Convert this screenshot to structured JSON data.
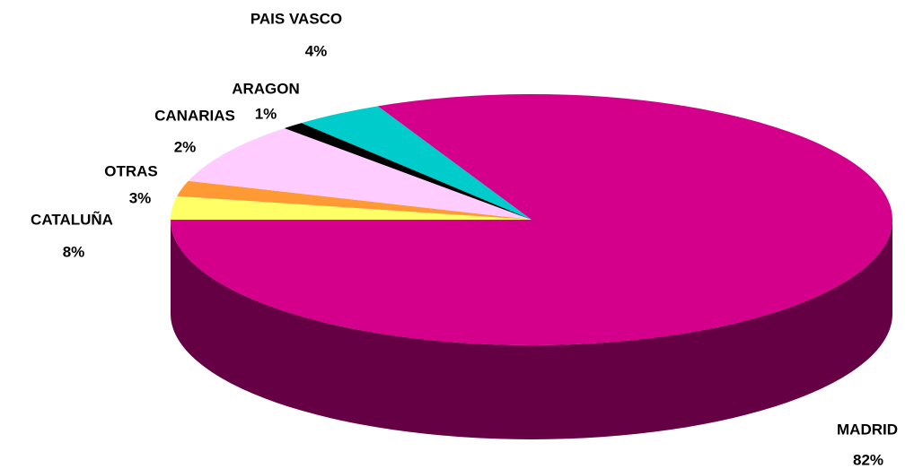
{
  "chart_data": {
    "type": "pie3d",
    "categories": [
      "OTRAS",
      "CANARIAS",
      "CATALUÑA",
      "ARAGON",
      "PAIS VASCO",
      "MADRID"
    ],
    "values": [
      3,
      2,
      8,
      1,
      4,
      82
    ],
    "value_labels": [
      "3%",
      "2%",
      "8%",
      "1%",
      "4%",
      "82%"
    ],
    "colors": [
      "#ffff66",
      "#ff9933",
      "#ffccff",
      "#000000",
      "#00cccc",
      "#d4008c"
    ],
    "side_color": "#660044"
  }
}
